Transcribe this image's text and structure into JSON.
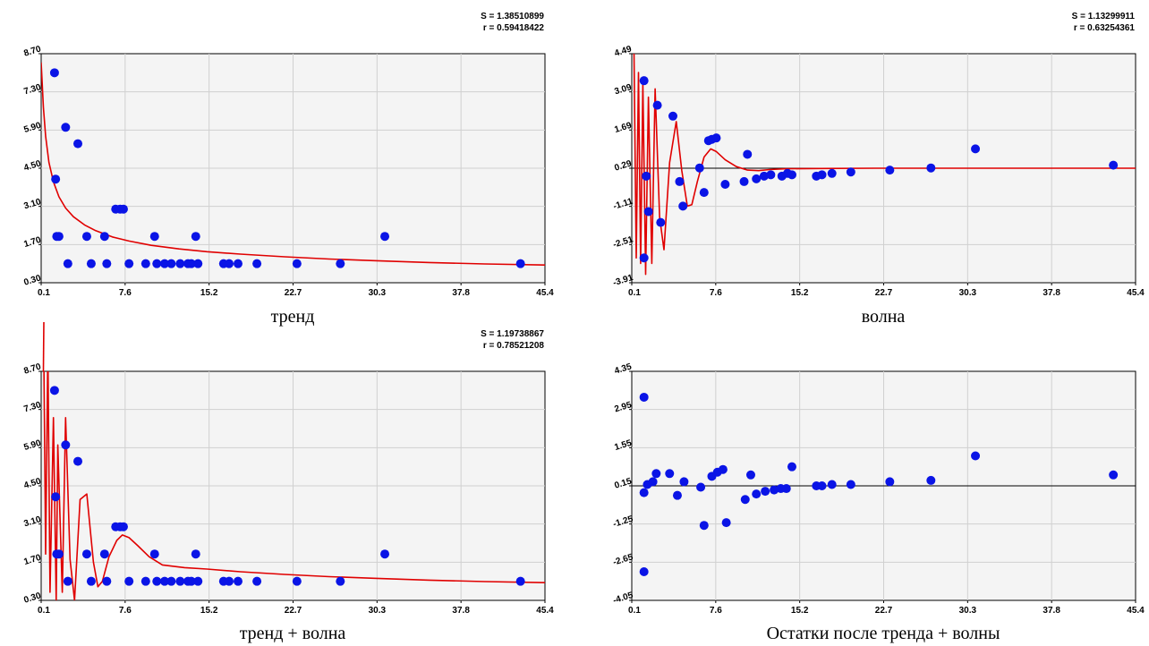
{
  "colors": {
    "points": "#0a14e6",
    "curve": "#e00000",
    "grid": "#d0d0d0",
    "background": "#f4f4f4"
  },
  "chart_data": [
    {
      "type": "scatter",
      "caption": "тренд",
      "stats": {
        "s": "S = 1.38510899",
        "r": "r = 0.59418422"
      },
      "xlim": [
        0.1,
        45.4
      ],
      "ylim": [
        0.3,
        8.7
      ],
      "xticks": [
        "0.1",
        "7.6",
        "15.2",
        "22.7",
        "30.3",
        "37.8",
        "45.4"
      ],
      "yticks": [
        "0.30",
        "1.70",
        "3.10",
        "4.50",
        "5.90",
        "7.30",
        "8.70"
      ],
      "points": [
        [
          1.3,
          8.0
        ],
        [
          1.4,
          4.1
        ],
        [
          1.5,
          2.0
        ],
        [
          1.7,
          2.0
        ],
        [
          2.3,
          6.0
        ],
        [
          2.5,
          1.0
        ],
        [
          3.4,
          5.4
        ],
        [
          4.2,
          2.0
        ],
        [
          4.6,
          1.0
        ],
        [
          5.8,
          2.0
        ],
        [
          6.0,
          1.0
        ],
        [
          6.8,
          3.0
        ],
        [
          7.2,
          3.0
        ],
        [
          7.5,
          3.0
        ],
        [
          8.0,
          1.0
        ],
        [
          9.5,
          1.0
        ],
        [
          10.3,
          2.0
        ],
        [
          10.5,
          1.0
        ],
        [
          11.2,
          1.0
        ],
        [
          11.8,
          1.0
        ],
        [
          12.6,
          1.0
        ],
        [
          13.3,
          1.0
        ],
        [
          13.6,
          1.0
        ],
        [
          14.0,
          2.0
        ],
        [
          14.2,
          1.0
        ],
        [
          16.5,
          1.0
        ],
        [
          17.0,
          1.0
        ],
        [
          17.8,
          1.0
        ],
        [
          19.5,
          1.0
        ],
        [
          23.1,
          1.0
        ],
        [
          27.0,
          1.0
        ],
        [
          31.0,
          2.0
        ],
        [
          43.2,
          1.0
        ]
      ],
      "curve": [
        [
          0.1,
          8.38
        ],
        [
          0.3,
          6.73
        ],
        [
          0.5,
          5.67
        ],
        [
          0.8,
          4.71
        ],
        [
          1.2,
          4.0
        ],
        [
          1.7,
          3.45
        ],
        [
          2.3,
          3.04
        ],
        [
          3.0,
          2.72
        ],
        [
          4.0,
          2.42
        ],
        [
          5.0,
          2.21
        ],
        [
          6.5,
          1.98
        ],
        [
          8.0,
          1.83
        ],
        [
          10.0,
          1.67
        ],
        [
          12.5,
          1.54
        ],
        [
          15.0,
          1.44
        ],
        [
          18.0,
          1.35
        ],
        [
          22.0,
          1.25
        ],
        [
          26.0,
          1.17
        ],
        [
          30.0,
          1.11
        ],
        [
          35.0,
          1.04
        ],
        [
          40.0,
          0.99
        ],
        [
          45.4,
          0.95
        ]
      ]
    },
    {
      "type": "scatter",
      "caption": "волна",
      "stats": {
        "s": "S = 1.13299911",
        "r": "r = 0.63254361"
      },
      "xlim": [
        0.1,
        45.4
      ],
      "ylim": [
        -3.91,
        4.49
      ],
      "xticks": [
        "0.1",
        "7.6",
        "15.2",
        "22.7",
        "30.3",
        "37.8",
        "45.4"
      ],
      "yticks": [
        "-3.91",
        "-2.51",
        "-1.11",
        "0.29",
        "1.69",
        "3.09",
        "4.49"
      ],
      "zero_line": 0.29,
      "points": [
        [
          1.2,
          3.5
        ],
        [
          1.4,
          0.0
        ],
        [
          1.6,
          -1.3
        ],
        [
          1.2,
          -3.0
        ],
        [
          2.4,
          2.6
        ],
        [
          2.7,
          -1.7
        ],
        [
          3.8,
          2.2
        ],
        [
          4.4,
          -0.2
        ],
        [
          4.7,
          -1.1
        ],
        [
          6.2,
          0.3
        ],
        [
          6.6,
          -0.6
        ],
        [
          7.0,
          1.3
        ],
        [
          7.3,
          1.35
        ],
        [
          7.7,
          1.4
        ],
        [
          8.5,
          -0.3
        ],
        [
          10.2,
          -0.2
        ],
        [
          10.5,
          0.8
        ],
        [
          11.3,
          -0.1
        ],
        [
          12.0,
          0.0
        ],
        [
          12.6,
          0.05
        ],
        [
          13.6,
          0.0
        ],
        [
          14.1,
          0.1
        ],
        [
          14.5,
          0.05
        ],
        [
          16.7,
          0.0
        ],
        [
          17.2,
          0.05
        ],
        [
          18.1,
          0.1
        ],
        [
          19.8,
          0.15
        ],
        [
          23.3,
          0.22
        ],
        [
          27.0,
          0.3
        ],
        [
          31.0,
          1.0
        ],
        [
          43.4,
          0.4
        ]
      ],
      "curve": [
        [
          0.3,
          4.49
        ],
        [
          0.5,
          -3.0
        ],
        [
          0.7,
          3.8
        ],
        [
          0.9,
          -3.2
        ],
        [
          1.1,
          3.4
        ],
        [
          1.35,
          -3.6
        ],
        [
          1.6,
          2.9
        ],
        [
          1.9,
          -3.2
        ],
        [
          2.2,
          3.2
        ],
        [
          2.6,
          -1.5
        ],
        [
          3.0,
          -2.7
        ],
        [
          3.5,
          0.5
        ],
        [
          4.1,
          2.0
        ],
        [
          4.6,
          0.2
        ],
        [
          5.1,
          -1.1
        ],
        [
          5.5,
          -1.05
        ],
        [
          6.0,
          -0.2
        ],
        [
          6.6,
          0.7
        ],
        [
          7.2,
          1.0
        ],
        [
          7.7,
          0.9
        ],
        [
          8.5,
          0.6
        ],
        [
          9.5,
          0.35
        ],
        [
          10.5,
          0.22
        ],
        [
          11.5,
          0.2
        ],
        [
          12.5,
          0.24
        ],
        [
          14.0,
          0.27
        ],
        [
          17.0,
          0.28
        ],
        [
          22.0,
          0.29
        ],
        [
          30.0,
          0.29
        ],
        [
          45.4,
          0.29
        ]
      ]
    },
    {
      "type": "scatter",
      "caption": "тренд + волна",
      "stats": {
        "s": "S = 1.19738867",
        "r": "r = 0.78521208"
      },
      "xlim": [
        0.1,
        45.4
      ],
      "ylim": [
        0.3,
        8.7
      ],
      "xticks": [
        "0.1",
        "7.6",
        "15.2",
        "22.7",
        "30.3",
        "37.8",
        "45.4"
      ],
      "yticks": [
        "0.30",
        "1.70",
        "3.10",
        "4.50",
        "5.90",
        "7.30",
        "8.70"
      ],
      "points": [
        [
          1.3,
          8.0
        ],
        [
          1.4,
          4.1
        ],
        [
          1.5,
          2.0
        ],
        [
          1.7,
          2.0
        ],
        [
          2.3,
          6.0
        ],
        [
          2.5,
          1.0
        ],
        [
          3.4,
          5.4
        ],
        [
          4.2,
          2.0
        ],
        [
          4.6,
          1.0
        ],
        [
          5.8,
          2.0
        ],
        [
          6.0,
          1.0
        ],
        [
          6.8,
          3.0
        ],
        [
          7.2,
          3.0
        ],
        [
          7.5,
          3.0
        ],
        [
          8.0,
          1.0
        ],
        [
          9.5,
          1.0
        ],
        [
          10.3,
          2.0
        ],
        [
          10.5,
          1.0
        ],
        [
          11.2,
          1.0
        ],
        [
          11.8,
          1.0
        ],
        [
          12.6,
          1.0
        ],
        [
          13.3,
          1.0
        ],
        [
          13.6,
          1.0
        ],
        [
          14.0,
          2.0
        ],
        [
          14.2,
          1.0
        ],
        [
          16.5,
          1.0
        ],
        [
          17.0,
          1.0
        ],
        [
          17.8,
          1.0
        ],
        [
          19.5,
          1.0
        ],
        [
          23.1,
          1.0
        ],
        [
          27.0,
          1.0
        ],
        [
          31.0,
          2.0
        ],
        [
          43.2,
          1.0
        ]
      ],
      "curve": [
        [
          0.3,
          11.0
        ],
        [
          0.5,
          2.0
        ],
        [
          0.7,
          9.5
        ],
        [
          0.9,
          0.6
        ],
        [
          1.2,
          7.0
        ],
        [
          1.45,
          0.3
        ],
        [
          1.6,
          6.0
        ],
        [
          2.0,
          0.6
        ],
        [
          2.3,
          7.0
        ],
        [
          2.7,
          1.8
        ],
        [
          3.1,
          0.3
        ],
        [
          3.6,
          4.0
        ],
        [
          4.2,
          4.2
        ],
        [
          4.8,
          1.7
        ],
        [
          5.2,
          0.8
        ],
        [
          5.6,
          1.0
        ],
        [
          6.2,
          1.9
        ],
        [
          6.9,
          2.5
        ],
        [
          7.4,
          2.7
        ],
        [
          8.0,
          2.6
        ],
        [
          8.8,
          2.3
        ],
        [
          9.8,
          1.9
        ],
        [
          11.0,
          1.6
        ],
        [
          13.0,
          1.5
        ],
        [
          15.0,
          1.45
        ],
        [
          18.0,
          1.35
        ],
        [
          22.0,
          1.25
        ],
        [
          26.0,
          1.17
        ],
        [
          30.0,
          1.11
        ],
        [
          35.0,
          1.04
        ],
        [
          40.0,
          0.99
        ],
        [
          45.4,
          0.95
        ]
      ]
    },
    {
      "type": "scatter",
      "caption": "Остатки после тренда + волны",
      "xlim": [
        0.1,
        45.4
      ],
      "ylim": [
        -4.05,
        4.35
      ],
      "xticks": [
        "0.1",
        "7.6",
        "15.2",
        "22.7",
        "30.3",
        "37.8",
        "45.4"
      ],
      "yticks": [
        "-4.05",
        "-2.65",
        "-1.25",
        "0.15",
        "1.55",
        "2.95",
        "4.35"
      ],
      "zero_line": 0.15,
      "points": [
        [
          1.2,
          3.4
        ],
        [
          1.2,
          -0.1
        ],
        [
          1.5,
          0.2
        ],
        [
          1.2,
          -3.0
        ],
        [
          2.0,
          0.3
        ],
        [
          2.3,
          0.6
        ],
        [
          3.5,
          0.6
        ],
        [
          4.2,
          -0.2
        ],
        [
          4.8,
          0.3
        ],
        [
          6.3,
          0.1
        ],
        [
          6.6,
          -1.3
        ],
        [
          7.3,
          0.5
        ],
        [
          7.8,
          0.65
        ],
        [
          8.3,
          0.75
        ],
        [
          8.6,
          -1.2
        ],
        [
          10.3,
          -0.35
        ],
        [
          10.8,
          0.55
        ],
        [
          11.3,
          -0.15
        ],
        [
          12.1,
          -0.05
        ],
        [
          12.9,
          0.0
        ],
        [
          13.5,
          0.05
        ],
        [
          14.0,
          0.05
        ],
        [
          14.5,
          0.85
        ],
        [
          16.7,
          0.15
        ],
        [
          17.2,
          0.15
        ],
        [
          18.1,
          0.2
        ],
        [
          19.8,
          0.2
        ],
        [
          23.3,
          0.3
        ],
        [
          27.0,
          0.35
        ],
        [
          31.0,
          1.25
        ],
        [
          43.4,
          0.55
        ]
      ]
    }
  ]
}
